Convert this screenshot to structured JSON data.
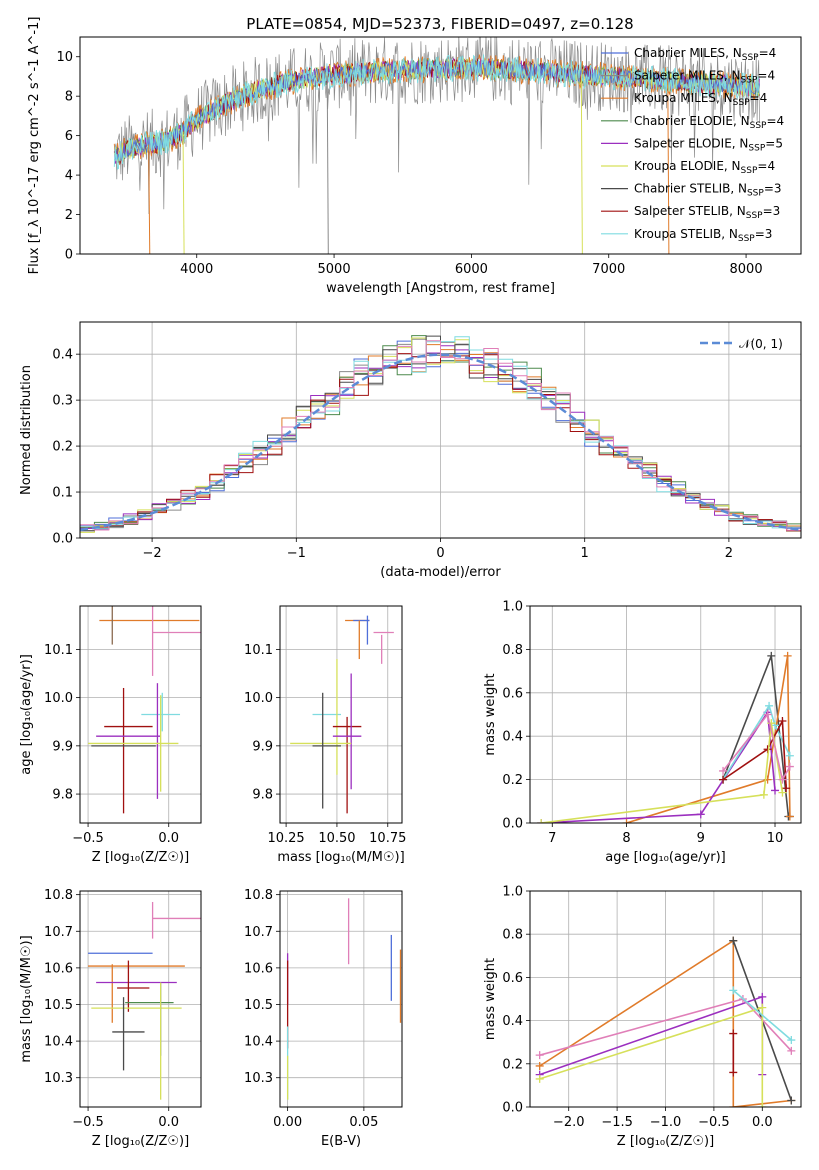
{
  "figure": {
    "title": "PLATE=0854, MJD=52373, FIBERID=0497, z=0.128"
  },
  "colors": {
    "Chabrier MILES": "#4f6fd9",
    "Salpeter MILES": "#8a8a8a",
    "Kroupa MILES": "#e07b2a",
    "Chabrier ELODIE": "#4d8a4d",
    "Salpeter ELODIE": "#9b2fbf",
    "Kroupa ELODIE": "#d6e05a",
    "Chabrier STELIB": "#4a4a4a",
    "Salpeter STELIB": "#a01010",
    "Kroupa STELIB": "#7fdbe0",
    "pink": "#e07fb8",
    "gaussian": "#5b8bd6"
  },
  "chart_data": [
    {
      "id": "spectrum",
      "type": "line",
      "xlabel": "wavelength [Angstrom, rest frame]",
      "ylabel": "Flux [f_λ 10^-17 erg cm^-2 s^-1 A^-1]",
      "xlim": [
        3150,
        8400
      ],
      "ylim": [
        0,
        11
      ],
      "xticks": [
        4000,
        5000,
        6000,
        7000,
        8000
      ],
      "yticks": [
        0,
        2,
        4,
        6,
        8,
        10
      ],
      "grid": false,
      "legend_placement": "right",
      "legend": [
        {
          "label": "Chabrier MILES, N",
          "sub": "SSP",
          "suffix": "=4",
          "color": "#4f6fd9"
        },
        {
          "label": "Salpeter MILES, N",
          "sub": "SSP",
          "suffix": "=4",
          "color": "#8a8a8a"
        },
        {
          "label": "Kroupa MILES, N",
          "sub": "SSP",
          "suffix": "=4",
          "color": "#e07b2a"
        },
        {
          "label": "Chabrier ELODIE, N",
          "sub": "SSP",
          "suffix": "=4",
          "color": "#4d8a4d"
        },
        {
          "label": "Salpeter ELODIE, N",
          "sub": "SSP",
          "suffix": "=5",
          "color": "#9b2fbf"
        },
        {
          "label": "Kroupa ELODIE, N",
          "sub": "SSP",
          "suffix": "=4",
          "color": "#d6e05a"
        },
        {
          "label": "Chabrier STELIB, N",
          "sub": "SSP",
          "suffix": "=3",
          "color": "#4a4a4a"
        },
        {
          "label": "Salpeter STELIB, N",
          "sub": "SSP",
          "suffix": "=3",
          "color": "#a01010"
        },
        {
          "label": "Kroupa STELIB, N",
          "sub": "SSP",
          "suffix": "=3",
          "color": "#7fdbe0"
        }
      ],
      "continuum_x": [
        3400,
        3500,
        3600,
        3700,
        3800,
        3900,
        4000,
        4200,
        4400,
        4600,
        4800,
        5000,
        5200,
        5400,
        5600,
        5800,
        6000,
        6200,
        6400,
        6600,
        6800,
        7000,
        7200,
        7400,
        7600,
        7800,
        8000,
        8100
      ],
      "continuum_y": [
        4.9,
        5.3,
        5.5,
        5.6,
        5.8,
        6.2,
        6.8,
        7.6,
        8.2,
        8.6,
        8.9,
        9.1,
        9.2,
        9.3,
        9.35,
        9.4,
        9.45,
        9.4,
        9.3,
        9.2,
        9.1,
        9.0,
        8.9,
        8.8,
        8.7,
        8.6,
        8.5,
        8.4
      ],
      "dropouts": [
        {
          "x": 3650,
          "y": 0,
          "color": "#e07b2a"
        },
        {
          "x": 3900,
          "y": 0,
          "color": "#d6e05a"
        },
        {
          "x": 4950,
          "y": 0,
          "color": "#8a8a8a"
        },
        {
          "x": 6800,
          "y": 0,
          "color": "#d6e05a"
        },
        {
          "x": 7430,
          "y": 0,
          "color": "#e07b2a"
        }
      ]
    },
    {
      "id": "residuals",
      "type": "line",
      "xlabel": "(data-model)/error",
      "ylabel": "Normed distribution",
      "xlim": [
        -2.5,
        2.5
      ],
      "ylim": [
        0,
        0.47
      ],
      "xticks": [
        -2,
        -1,
        0,
        1,
        2
      ],
      "yticks": [
        0.0,
        0.1,
        0.2,
        0.3,
        0.4
      ],
      "grid": true,
      "legend_placement": "top-right",
      "legend": [
        {
          "label": "𝒩(0, 1)",
          "color": "#5b8bd6",
          "style": "dashed"
        }
      ],
      "bin_width": 0.1
    },
    {
      "id": "age_vs_Z",
      "type": "scatter",
      "xlabel": "Z [log₁₀(Z/Z☉)]",
      "ylabel": "age  [log₁₀(age/yr)]",
      "xlim": [
        -0.55,
        0.2
      ],
      "ylim": [
        9.74,
        10.19
      ],
      "xticks": [
        -0.5,
        0.0
      ],
      "yticks": [
        9.8,
        9.9,
        10.0,
        10.1
      ],
      "grid": true,
      "points": [
        {
          "x": -0.12,
          "y": 10.16,
          "xerr": 0.31,
          "yerr": 0.0,
          "color": "#e07b2a"
        },
        {
          "x": -0.35,
          "y": 10.16,
          "xerr": 0.0,
          "yerr": 0.05,
          "color": "#8a6a50"
        },
        {
          "x": 0.05,
          "y": 10.135,
          "xerr": 0.15,
          "yerr": 0.0,
          "color": "#e07fb8"
        },
        {
          "x": -0.1,
          "y": 10.135,
          "xerr": 0.0,
          "yerr": 0.09,
          "color": "#e07fb8"
        },
        {
          "x": -0.05,
          "y": 9.965,
          "xerr": 0.12,
          "yerr": 0.0,
          "color": "#7fdbe0"
        },
        {
          "x": -0.25,
          "y": 9.94,
          "xerr": 0.15,
          "yerr": 0.0,
          "color": "#a01010"
        },
        {
          "x": -0.28,
          "y": 9.89,
          "xerr": 0.0,
          "yerr": 0.13,
          "color": "#a01010"
        },
        {
          "x": -0.25,
          "y": 9.92,
          "xerr": 0.2,
          "yerr": 0.0,
          "color": "#9b2fbf"
        },
        {
          "x": -0.07,
          "y": 9.91,
          "xerr": 0.0,
          "yerr": 0.12,
          "color": "#9b2fbf"
        },
        {
          "x": -0.22,
          "y": 9.905,
          "xerr": 0.28,
          "yerr": 0.0,
          "color": "#d6e05a"
        },
        {
          "x": -0.05,
          "y": 9.905,
          "xerr": 0.0,
          "yerr": 0.1,
          "color": "#d6e05a"
        },
        {
          "x": -0.28,
          "y": 9.9,
          "xerr": 0.2,
          "yerr": 0.0,
          "color": "#4a4a4a"
        },
        {
          "x": -0.04,
          "y": 9.97,
          "xerr": 0.0,
          "yerr": 0.04,
          "color": "#7fdbe0"
        }
      ]
    },
    {
      "id": "age_vs_mass",
      "type": "scatter",
      "xlabel": "mass [log₁₀(M/M☉)]",
      "ylabel": "",
      "xlim": [
        10.22,
        10.82
      ],
      "ylim": [
        9.74,
        10.19
      ],
      "xticks": [
        10.25,
        10.5,
        10.75
      ],
      "yticks": [
        9.8,
        9.9,
        10.0,
        10.1
      ],
      "grid": true,
      "points": [
        {
          "x": 10.6,
          "y": 10.16,
          "xerr": 0.06,
          "yerr": 0.0,
          "color": "#e07b2a"
        },
        {
          "x": 10.62,
          "y": 10.16,
          "xerr": 0.04,
          "yerr": 0.0,
          "color": "#4f6fd9"
        },
        {
          "x": 10.61,
          "y": 10.12,
          "xerr": 0.0,
          "yerr": 0.04,
          "color": "#e07b2a"
        },
        {
          "x": 10.65,
          "y": 10.14,
          "xerr": 0.0,
          "yerr": 0.03,
          "color": "#4f6fd9"
        },
        {
          "x": 10.73,
          "y": 10.135,
          "xerr": 0.05,
          "yerr": 0.0,
          "color": "#e07fb8"
        },
        {
          "x": 10.72,
          "y": 10.1,
          "xerr": 0.0,
          "yerr": 0.03,
          "color": "#e07fb8"
        },
        {
          "x": 10.45,
          "y": 9.965,
          "xerr": 0.07,
          "yerr": 0.0,
          "color": "#7fdbe0"
        },
        {
          "x": 10.5,
          "y": 9.96,
          "xerr": 0.0,
          "yerr": 0.12,
          "color": "#d6e05a"
        },
        {
          "x": 10.55,
          "y": 9.94,
          "xerr": 0.07,
          "yerr": 0.0,
          "color": "#a01010"
        },
        {
          "x": 10.55,
          "y": 9.86,
          "xerr": 0.0,
          "yerr": 0.1,
          "color": "#a01010"
        },
        {
          "x": 10.55,
          "y": 9.92,
          "xerr": 0.07,
          "yerr": 0.0,
          "color": "#9b2fbf"
        },
        {
          "x": 10.57,
          "y": 9.93,
          "xerr": 0.0,
          "yerr": 0.12,
          "color": "#9b2fbf"
        },
        {
          "x": 10.42,
          "y": 9.905,
          "xerr": 0.15,
          "yerr": 0.0,
          "color": "#d6e05a"
        },
        {
          "x": 10.45,
          "y": 9.9,
          "xerr": 0.07,
          "yerr": 0.0,
          "color": "#4a4a4a"
        },
        {
          "x": 10.43,
          "y": 9.89,
          "xerr": 0.0,
          "yerr": 0.12,
          "color": "#4a4a4a"
        }
      ]
    },
    {
      "id": "mass_weight_vs_age",
      "type": "line",
      "xlabel": "age  [log₁₀(age/yr)]",
      "ylabel": "mass weight",
      "xlim": [
        6.7,
        10.35
      ],
      "ylim": [
        0,
        1.0
      ],
      "xticks": [
        7,
        8,
        9,
        10
      ],
      "yticks": [
        0.0,
        0.2,
        0.4,
        0.6,
        0.8,
        1.0
      ],
      "grid": true,
      "series": [
        {
          "color": "#4a4a4a",
          "x": [
            9.3,
            9.95,
            10.18,
            10.2
          ],
          "y": [
            0.2,
            0.77,
            0.03,
            0.03
          ]
        },
        {
          "color": "#e07b2a",
          "x": [
            8.0,
            9.9,
            10.17,
            10.2
          ],
          "y": [
            0.0,
            0.2,
            0.77,
            0.03
          ]
        },
        {
          "color": "#9b2fbf",
          "x": [
            6.85,
            9.0,
            9.9,
            10.0
          ],
          "y": [
            0.0,
            0.04,
            0.51,
            0.15
          ]
        },
        {
          "color": "#7fdbe0",
          "x": [
            9.3,
            9.92,
            10.0,
            10.2
          ],
          "y": [
            0.2,
            0.54,
            0.45,
            0.31
          ]
        },
        {
          "color": "#a01010",
          "x": [
            9.3,
            9.9,
            10.1,
            10.15
          ],
          "y": [
            0.2,
            0.34,
            0.47,
            0.16
          ]
        },
        {
          "color": "#d6e05a",
          "x": [
            6.85,
            9.85,
            9.95,
            10.1
          ],
          "y": [
            0.0,
            0.13,
            0.46,
            0.14
          ]
        },
        {
          "color": "#e07fb8",
          "x": [
            9.3,
            9.9,
            10.1,
            10.2
          ],
          "y": [
            0.24,
            0.5,
            0.2,
            0.26
          ]
        }
      ]
    },
    {
      "id": "mass_vs_Z",
      "type": "scatter",
      "xlabel": "Z [log₁₀(Z/Z☉)]",
      "ylabel": "mass [log₁₀(M/M☉)]",
      "xlim": [
        -0.55,
        0.2
      ],
      "ylim": [
        10.22,
        10.81
      ],
      "xticks": [
        -0.5,
        0.0
      ],
      "yticks": [
        10.3,
        10.4,
        10.5,
        10.6,
        10.7,
        10.8
      ],
      "grid": true,
      "points": [
        {
          "x": 0.05,
          "y": 10.735,
          "xerr": 0.15,
          "yerr": 0.0,
          "color": "#e07fb8"
        },
        {
          "x": -0.1,
          "y": 10.73,
          "xerr": 0.0,
          "yerr": 0.05,
          "color": "#e07fb8"
        },
        {
          "x": -0.3,
          "y": 10.64,
          "xerr": 0.2,
          "yerr": 0.0,
          "color": "#4f6fd9"
        },
        {
          "x": -0.2,
          "y": 10.605,
          "xerr": 0.3,
          "yerr": 0.0,
          "color": "#e07b2a"
        },
        {
          "x": -0.35,
          "y": 10.53,
          "xerr": 0.0,
          "yerr": 0.08,
          "color": "#e07b2a"
        },
        {
          "x": -0.2,
          "y": 10.56,
          "xerr": 0.25,
          "yerr": 0.0,
          "color": "#9b2fbf"
        },
        {
          "x": -0.22,
          "y": 10.545,
          "xerr": 0.1,
          "yerr": 0.0,
          "color": "#a01010"
        },
        {
          "x": -0.25,
          "y": 10.55,
          "xerr": 0.0,
          "yerr": 0.07,
          "color": "#a01010"
        },
        {
          "x": -0.12,
          "y": 10.505,
          "xerr": 0.15,
          "yerr": 0.0,
          "color": "#4d8a4d"
        },
        {
          "x": -0.2,
          "y": 10.49,
          "xerr": 0.28,
          "yerr": 0.0,
          "color": "#d6e05a"
        },
        {
          "x": -0.05,
          "y": 10.46,
          "xerr": 0.0,
          "yerr": 0.1,
          "color": "#4f6fd9"
        },
        {
          "x": -0.05,
          "y": 10.4,
          "xerr": 0.0,
          "yerr": 0.16,
          "color": "#d6e05a"
        },
        {
          "x": -0.25,
          "y": 10.425,
          "xerr": 0.1,
          "yerr": 0.0,
          "color": "#4a4a4a"
        },
        {
          "x": -0.28,
          "y": 10.42,
          "xerr": 0.0,
          "yerr": 0.1,
          "color": "#4a4a4a"
        }
      ]
    },
    {
      "id": "mass_vs_ebv",
      "type": "scatter",
      "xlabel": "E(B-V)",
      "ylabel": "",
      "xlim": [
        -0.005,
        0.075
      ],
      "ylim": [
        10.22,
        10.81
      ],
      "xticks": [
        0.0,
        0.05
      ],
      "yticks": [
        10.3,
        10.4,
        10.5,
        10.6,
        10.7,
        10.8
      ],
      "grid": true,
      "points": [
        {
          "x": 0.0,
          "y": 10.57,
          "xerr": 0.0,
          "yerr": 0.07,
          "color": "#9b2fbf"
        },
        {
          "x": 0.0,
          "y": 10.5,
          "xerr": 0.0,
          "yerr": 0.12,
          "color": "#a01010"
        },
        {
          "x": 0.0,
          "y": 10.34,
          "xerr": 0.0,
          "yerr": 0.1,
          "color": "#7fdbe0"
        },
        {
          "x": 0.0,
          "y": 10.3,
          "xerr": 0.0,
          "yerr": 0.06,
          "color": "#d6e05a"
        },
        {
          "x": 0.04,
          "y": 10.7,
          "xerr": 0.0,
          "yerr": 0.09,
          "color": "#e07fb8"
        },
        {
          "x": 0.068,
          "y": 10.6,
          "xerr": 0.0,
          "yerr": 0.09,
          "color": "#4f6fd9"
        },
        {
          "x": 0.074,
          "y": 10.55,
          "xerr": 0.0,
          "yerr": 0.1,
          "color": "#e07b2a"
        }
      ]
    },
    {
      "id": "mass_weight_vs_Z",
      "type": "line",
      "xlabel": "Z [log₁₀(Z/Z☉)]",
      "ylabel": "mass weight",
      "xlim": [
        -2.4,
        0.4
      ],
      "ylim": [
        0,
        1.0
      ],
      "xticks": [
        -2.0,
        -1.5,
        -1.0,
        -0.5,
        0.0
      ],
      "yticks": [
        0.0,
        0.2,
        0.4,
        0.6,
        0.8,
        1.0
      ],
      "grid": true,
      "series": [
        {
          "color": "#e07b2a",
          "x": [
            -2.3,
            -0.3,
            -0.3,
            0.3
          ],
          "y": [
            0.19,
            0.77,
            0.0,
            0.03
          ]
        },
        {
          "color": "#4a4a4a",
          "x": [
            -0.3,
            0.3
          ],
          "y": [
            0.77,
            0.03
          ]
        },
        {
          "color": "#9b2fbf",
          "x": [
            -2.3,
            0.0,
            0.0
          ],
          "y": [
            0.15,
            0.51,
            0.15
          ]
        },
        {
          "color": "#e07fb8",
          "x": [
            -2.3,
            -0.2,
            0.3
          ],
          "y": [
            0.24,
            0.5,
            0.26
          ]
        },
        {
          "color": "#d6e05a",
          "x": [
            -2.3,
            0.0,
            0.0
          ],
          "y": [
            0.13,
            0.46,
            0.0
          ]
        },
        {
          "color": "#7fdbe0",
          "x": [
            -0.3,
            0.3
          ],
          "y": [
            0.54,
            0.31
          ]
        },
        {
          "color": "#a01010",
          "x": [
            -0.3,
            -0.3
          ],
          "y": [
            0.34,
            0.16
          ]
        }
      ]
    }
  ]
}
